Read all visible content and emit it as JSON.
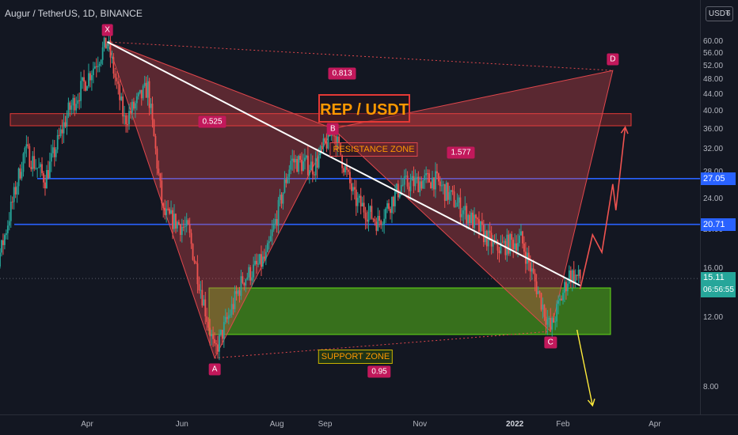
{
  "header": {
    "title": "Augur / TetherUS, 1D, BINANCE",
    "currency_button": "USDT"
  },
  "chart_data": {
    "type": "candlestick",
    "title": "REP / USDT",
    "symbol": "Augur / TetherUS",
    "interval": "1D",
    "exchange": "BINANCE",
    "x_ticks": [
      "Apr",
      "Jun",
      "Aug",
      "Sep",
      "Nov",
      "2022",
      "Feb",
      "Apr"
    ],
    "y_ticks": [
      8.0,
      12.0,
      16.0,
      20.0,
      24.0,
      28.0,
      32.0,
      36.0,
      40.0,
      44.0,
      48.0,
      52.0,
      56.0,
      60.0
    ],
    "y_top_partial": "6",
    "y_scale": "log",
    "ylim": [
      6.8,
      66
    ],
    "price_tags": [
      {
        "value": "27.05",
        "color": "#2962ff"
      },
      {
        "value": "20.71",
        "color": "#2962ff"
      }
    ],
    "current_price": {
      "value": "15.11",
      "countdown": "06:56:55"
    },
    "horizontal_lines": [
      27.05,
      20.71
    ],
    "pattern": {
      "points": [
        {
          "label": "X",
          "date": "2021-04-14",
          "value": 60.0
        },
        {
          "label": "A",
          "date": "2021-06-22",
          "value": 9.5
        },
        {
          "label": "B",
          "date": "2021-09-06",
          "value": 36.2
        },
        {
          "label": "C",
          "date": "2022-01-24",
          "value": 11.1
        },
        {
          "label": "D",
          "date": "2022-03-05",
          "value": 50.8
        }
      ],
      "ratios": [
        {
          "text": "0.525"
        },
        {
          "text": "0.813"
        },
        {
          "text": "1.577"
        },
        {
          "text": "0.95"
        }
      ]
    },
    "zones": [
      {
        "label": "RESISTANCE ZONE",
        "from": 36.8,
        "to": 39.5,
        "color": "#e53935"
      },
      {
        "label": "SUPPORT ZONE",
        "from": 10.9,
        "to": 14.3,
        "color": "#64dd17"
      }
    ],
    "trendline": {
      "from_date": "2021-04-14",
      "from_value": 60.0,
      "to_date": "2022-02-12",
      "to_value": 14.5
    },
    "bullish_path": [
      {
        "date": "2022-02-12",
        "value": 14.2
      },
      {
        "date": "2022-02-20",
        "value": 19.5
      },
      {
        "date": "2022-02-26",
        "value": 17.6
      },
      {
        "date": "2022-03-05",
        "value": 26.2
      },
      {
        "date": "2022-03-07",
        "value": 22.5
      },
      {
        "date": "2022-03-13",
        "value": 36.5
      }
    ],
    "bearish_path": [
      {
        "date": "2022-02-10",
        "value": 11.2
      },
      {
        "date": "2022-02-20",
        "value": 7.2
      }
    ],
    "colors": {
      "up": "#26a69a",
      "down": "#ef5350",
      "pattern": "#e0474c",
      "hline": "#2962ff",
      "trendline": "#ffffff"
    }
  }
}
